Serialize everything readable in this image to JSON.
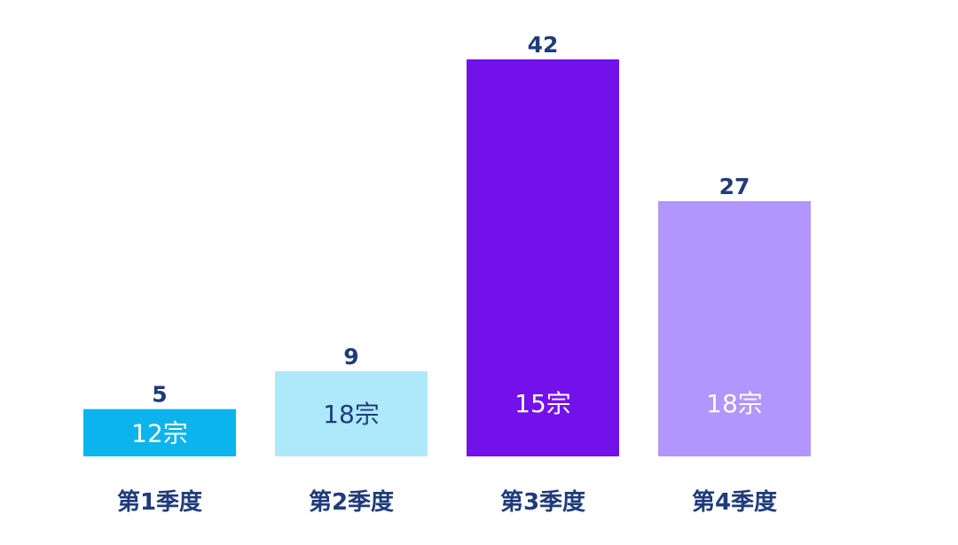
{
  "chart_data": {
    "type": "bar",
    "categories": [
      "第1季度",
      "第2季度",
      "第3季度",
      "第4季度"
    ],
    "values": [
      5,
      9,
      42,
      27
    ],
    "bar_labels": [
      "12宗",
      "18宗",
      "15宗",
      "18宗"
    ],
    "colors": [
      "#0bb4ec",
      "#aee8fb",
      "#7311eb",
      "#b295fd"
    ],
    "bar_label_colors": [
      "#ffffff",
      "#1f3b7a",
      "#ffffff",
      "#ffffff"
    ],
    "value_label_color": "#1f3b7a",
    "category_label_color": "#1f3b7a",
    "ylim": [
      0,
      42
    ],
    "grid": false,
    "legend": "none"
  }
}
